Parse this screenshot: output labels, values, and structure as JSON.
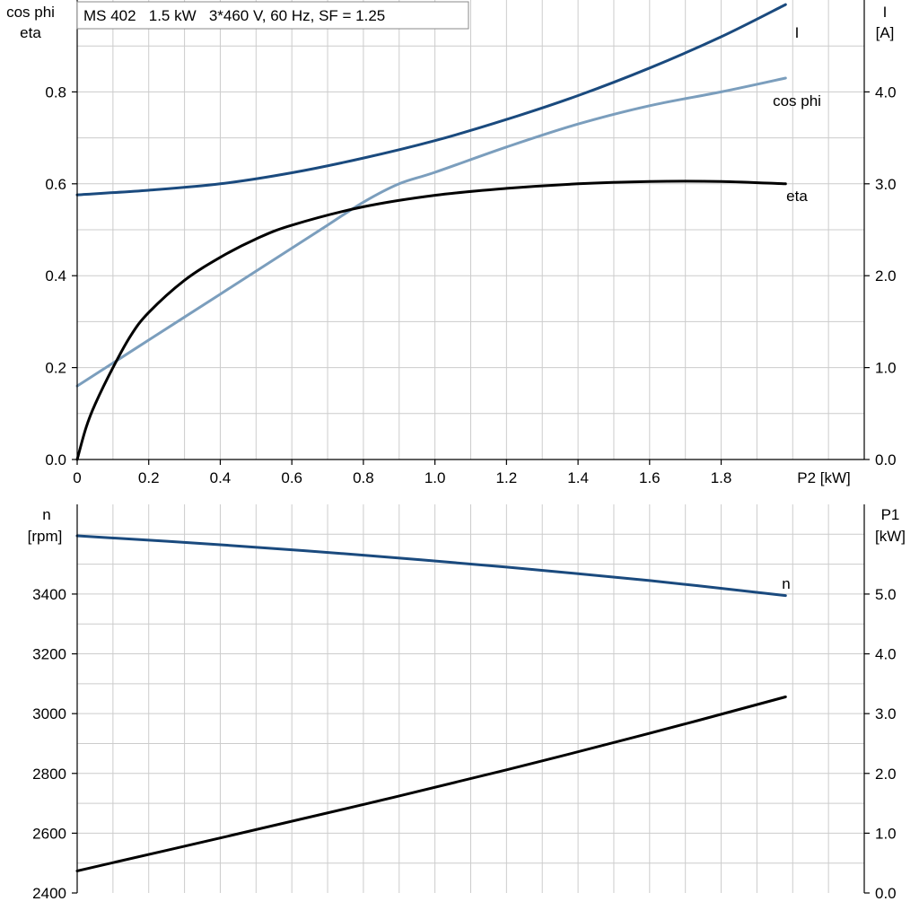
{
  "colors": {
    "dark_blue": "#1a4a7e",
    "light_blue": "#7b9ebd",
    "black": "#000000",
    "grid": "#cccccc"
  },
  "chart_data": [
    {
      "type": "line",
      "title": "MS 402   1.5 kW   3*460 V, 60 Hz, SF = 1.25",
      "xlabel": "P2 [kW]",
      "xlim": [
        0,
        2.2
      ],
      "x_ticks": [
        "0",
        "0.2",
        "0.4",
        "0.6",
        "0.8",
        "1.0",
        "1.2",
        "1.4",
        "1.6",
        "1.8"
      ],
      "left_axis_label": [
        "cos phi",
        "eta"
      ],
      "left_ylim": [
        0,
        1.0
      ],
      "left_ticks": [
        "0.0",
        "0.2",
        "0.4",
        "0.6",
        "0.8"
      ],
      "right_axis_label": [
        "I",
        "[A]"
      ],
      "right_ylim": [
        0,
        5.0
      ],
      "right_ticks": [
        "0.0",
        "1.0",
        "2.0",
        "3.0",
        "4.0"
      ],
      "grid": true,
      "series": [
        {
          "name": "I",
          "axis": "right",
          "color": "#1a4a7e",
          "x": [
            0,
            0.2,
            0.4,
            0.6,
            0.8,
            1.0,
            1.2,
            1.4,
            1.6,
            1.8,
            1.98
          ],
          "y": [
            2.88,
            2.93,
            3.0,
            3.12,
            3.28,
            3.47,
            3.7,
            3.96,
            4.26,
            4.6,
            4.95
          ]
        },
        {
          "name": "cos phi",
          "axis": "left",
          "color": "#7b9ebd",
          "x": [
            0,
            0.1,
            0.2,
            0.3,
            0.4,
            0.5,
            0.6,
            0.7,
            0.8,
            0.9,
            1.0,
            1.2,
            1.4,
            1.6,
            1.8,
            1.98
          ],
          "y": [
            0.16,
            0.21,
            0.26,
            0.31,
            0.36,
            0.41,
            0.46,
            0.51,
            0.56,
            0.6,
            0.625,
            0.68,
            0.73,
            0.77,
            0.8,
            0.83
          ]
        },
        {
          "name": "eta",
          "axis": "left",
          "color": "#000000",
          "x": [
            0,
            0.025,
            0.05,
            0.1,
            0.15,
            0.2,
            0.3,
            0.4,
            0.5,
            0.6,
            0.8,
            1.0,
            1.2,
            1.4,
            1.6,
            1.8,
            1.98
          ],
          "y": [
            0.0,
            0.07,
            0.12,
            0.2,
            0.27,
            0.32,
            0.39,
            0.44,
            0.48,
            0.51,
            0.55,
            0.575,
            0.59,
            0.6,
            0.605,
            0.605,
            0.6
          ]
        }
      ]
    },
    {
      "type": "line",
      "xlim": [
        0,
        2.2
      ],
      "left_axis_label": [
        "n",
        "[rpm]"
      ],
      "left_ylim": [
        2400,
        3700
      ],
      "left_ticks": [
        "2400",
        "2600",
        "2800",
        "3000",
        "3200",
        "3400"
      ],
      "right_axis_label": [
        "P1",
        "[kW]"
      ],
      "right_ylim": [
        0,
        6.5
      ],
      "right_ticks": [
        "0.0",
        "1.0",
        "2.0",
        "3.0",
        "4.0",
        "5.0"
      ],
      "grid": true,
      "series": [
        {
          "name": "n",
          "axis": "left",
          "color": "#1a4a7e",
          "x": [
            0,
            0.4,
            0.8,
            1.2,
            1.6,
            1.98
          ],
          "y": [
            3595,
            3565,
            3530,
            3490,
            3445,
            3395
          ]
        },
        {
          "axis": "right",
          "color": "#000000",
          "x": [
            0,
            0.4,
            0.8,
            1.2,
            1.6,
            1.98
          ],
          "y": [
            0.37,
            0.92,
            1.48,
            2.06,
            2.67,
            3.28
          ]
        }
      ]
    }
  ]
}
